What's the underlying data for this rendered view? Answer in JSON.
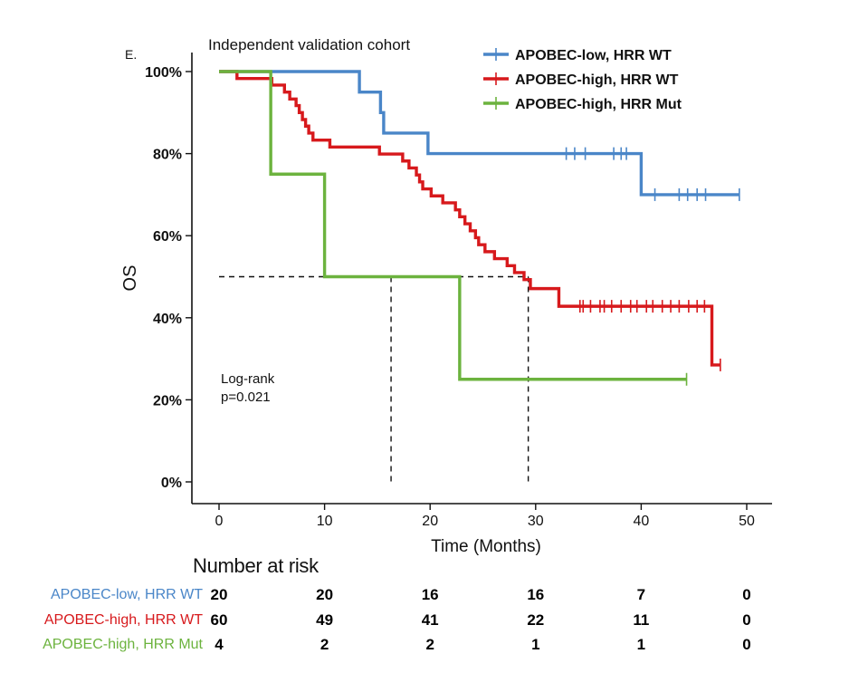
{
  "panel_label": "E.",
  "subtitle": "Independent validation cohort",
  "chart_data": {
    "type": "line",
    "subtype": "kaplan-meier",
    "xlabel": "Time (Months)",
    "ylabel": "OS",
    "xlim": [
      0,
      50
    ],
    "ylim": [
      0,
      100
    ],
    "x_ticks": [
      0,
      10,
      20,
      30,
      40,
      50
    ],
    "y_ticks": [
      0,
      20,
      40,
      60,
      80,
      100
    ],
    "y_tick_labels": [
      "0%",
      "20%",
      "40%",
      "60%",
      "80%",
      "100%"
    ],
    "legend_position": "top-right",
    "annotation": [
      "Log-rank",
      "p=0.021"
    ],
    "median_reference": {
      "y": 50,
      "x_values": [
        16.3,
        29.3
      ]
    },
    "series": [
      {
        "name": "APOBEC-low, HRR WT",
        "color": "#4a86c8",
        "steps": [
          [
            0,
            100
          ],
          [
            13.3,
            95
          ],
          [
            15.3,
            90
          ],
          [
            15.6,
            85
          ],
          [
            19.8,
            80
          ],
          [
            40,
            70
          ],
          [
            49.3,
            70
          ]
        ],
        "censor_times": [
          32.9,
          33.7,
          34.7,
          37.4,
          38.1,
          38.6,
          41.3,
          43.6,
          44.4,
          45.3,
          46.1,
          49.3
        ]
      },
      {
        "name": "APOBEC-high, HRR WT",
        "color": "#d7191c",
        "steps": [
          [
            0,
            100
          ],
          [
            1.7,
            98.3
          ],
          [
            5.0,
            96.7
          ],
          [
            6.2,
            95
          ],
          [
            6.7,
            93.3
          ],
          [
            7.3,
            91.7
          ],
          [
            7.6,
            90
          ],
          [
            7.9,
            88.3
          ],
          [
            8.2,
            86.7
          ],
          [
            8.5,
            85
          ],
          [
            8.9,
            83.3
          ],
          [
            10.5,
            81.6
          ],
          [
            15.2,
            79.9
          ],
          [
            17.4,
            78.2
          ],
          [
            18.0,
            76.5
          ],
          [
            18.7,
            74.8
          ],
          [
            19.0,
            73.1
          ],
          [
            19.3,
            71.4
          ],
          [
            20.1,
            69.7
          ],
          [
            21.2,
            68
          ],
          [
            22.4,
            66.3
          ],
          [
            22.8,
            64.6
          ],
          [
            23.3,
            62.9
          ],
          [
            23.8,
            61.2
          ],
          [
            24.3,
            59.5
          ],
          [
            24.6,
            57.8
          ],
          [
            25.2,
            56.1
          ],
          [
            26.1,
            54.4
          ],
          [
            27.3,
            52.7
          ],
          [
            28.0,
            51
          ],
          [
            28.9,
            49.3
          ],
          [
            29.5,
            47.1
          ],
          [
            32.2,
            42.8
          ],
          [
            46.7,
            28.5
          ],
          [
            47.5,
            28.5
          ]
        ],
        "censor_times": [
          34.2,
          34.5,
          35.2,
          36.1,
          36.5,
          37.2,
          38.1,
          39.0,
          39.6,
          40.5,
          41.1,
          42.0,
          42.8,
          43.6,
          44.5,
          45.3,
          46.0,
          47.5
        ]
      },
      {
        "name": "APOBEC-high, HRR Mut",
        "color": "#6cb33e",
        "steps": [
          [
            0,
            100
          ],
          [
            4.9,
            75
          ],
          [
            10,
            50
          ],
          [
            22.8,
            25
          ],
          [
            44.3,
            25
          ]
        ],
        "censor_times": [
          44.3
        ]
      }
    ],
    "risk_table": {
      "title": "Number at risk",
      "times": [
        0,
        10,
        20,
        30,
        40,
        50
      ],
      "rows": [
        {
          "group": "APOBEC-low",
          "suffix": ", HRR WT",
          "counts": [
            "20",
            "20",
            "16",
            "16",
            "7",
            "0"
          ]
        },
        {
          "group": "APOBEC-high",
          "suffix": ", HRR WT",
          "counts": [
            "60",
            "49",
            "41",
            "22",
            "11",
            "0"
          ]
        },
        {
          "group": "APOBEC-high",
          "suffix": ", HRR Mut",
          "counts": [
            "4",
            "2",
            "2",
            "1",
            "1",
            "0"
          ]
        }
      ]
    }
  }
}
